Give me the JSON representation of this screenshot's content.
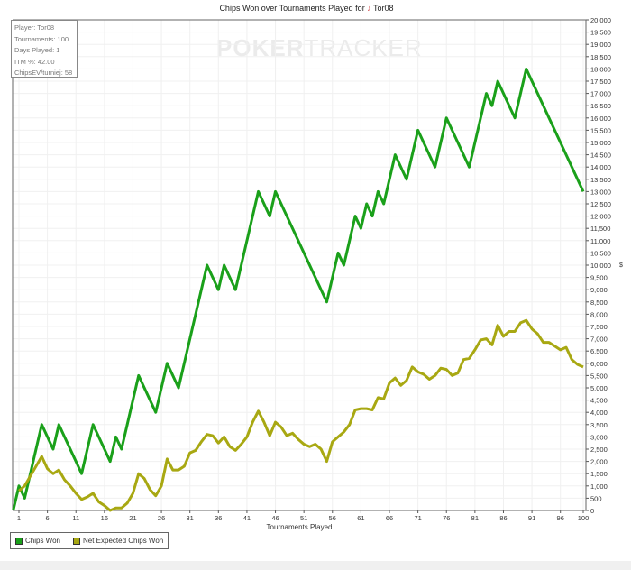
{
  "chart_data": {
    "type": "line",
    "title": "Chips Won over Tournaments Played for",
    "player_name": "Tor08",
    "xlabel": "Tournaments Played",
    "ylabel": "$",
    "xlim": [
      0,
      100
    ],
    "ylim": [
      0,
      20000
    ],
    "x_ticks": [
      1,
      6,
      11,
      16,
      21,
      26,
      31,
      36,
      41,
      46,
      51,
      56,
      61,
      66,
      71,
      76,
      81,
      86,
      91,
      96,
      100
    ],
    "y_tick_step": 500,
    "grid": true,
    "legend_position": "bottom-left",
    "series": [
      {
        "name": "Chips Won",
        "color": "#1aa01a",
        "points": [
          [
            0,
            0
          ],
          [
            1,
            1000
          ],
          [
            2,
            500
          ],
          [
            5,
            3500
          ],
          [
            7,
            2500
          ],
          [
            8,
            3500
          ],
          [
            12,
            1500
          ],
          [
            14,
            3500
          ],
          [
            17,
            2000
          ],
          [
            18,
            3000
          ],
          [
            19,
            2500
          ],
          [
            22,
            5500
          ],
          [
            25,
            4000
          ],
          [
            27,
            6000
          ],
          [
            29,
            5000
          ],
          [
            34,
            10000
          ],
          [
            36,
            9000
          ],
          [
            37,
            10000
          ],
          [
            39,
            9000
          ],
          [
            43,
            13000
          ],
          [
            45,
            12000
          ],
          [
            46,
            13000
          ],
          [
            55,
            8500
          ],
          [
            57,
            10500
          ],
          [
            58,
            10000
          ],
          [
            60,
            12000
          ],
          [
            61,
            11500
          ],
          [
            62,
            12500
          ],
          [
            63,
            12000
          ],
          [
            64,
            13000
          ],
          [
            65,
            12500
          ],
          [
            67,
            14500
          ],
          [
            69,
            13500
          ],
          [
            71,
            15500
          ],
          [
            74,
            14000
          ],
          [
            76,
            16000
          ],
          [
            80,
            14000
          ],
          [
            83,
            17000
          ],
          [
            84,
            16500
          ],
          [
            85,
            17500
          ],
          [
            88,
            16000
          ],
          [
            90,
            18000
          ],
          [
            100,
            13000
          ]
        ]
      },
      {
        "name": "Net Expected Chips Won",
        "color": "#a8a812",
        "values": [
          800,
          1000,
          1400,
          1800,
          2200,
          1700,
          1500,
          1650,
          1250,
          1000,
          700,
          450,
          550,
          700,
          350,
          200,
          0,
          100,
          100,
          300,
          700,
          1500,
          1300,
          850,
          600,
          1000,
          2100,
          1650,
          1650,
          1800,
          2350,
          2450,
          2800,
          3100,
          3050,
          2750,
          3000,
          2600,
          2450,
          2700,
          3000,
          3600,
          4050,
          3600,
          3050,
          3600,
          3400,
          3050,
          3150,
          2900,
          2700,
          2600,
          2700,
          2500,
          2000,
          2800,
          3000,
          3200,
          3500,
          4100,
          4150,
          4150,
          4100,
          4600,
          4550,
          5200,
          5400,
          5100,
          5300,
          5850,
          5650,
          5550,
          5350,
          5500,
          5800,
          5750,
          5500,
          5600,
          6150,
          6200,
          6550,
          6950,
          7000,
          6750,
          7550,
          7100,
          7300,
          7300,
          7650,
          7750,
          7400,
          7200,
          6850,
          6850,
          6700,
          6550,
          6650,
          6150,
          5950,
          5850
        ]
      }
    ]
  },
  "info_box": [
    "Player: Tor08",
    "Tournaments: 100",
    "Days Played: 1",
    "ITM %: 42.00",
    "ChipsEV/turniej: 58"
  ],
  "watermark": {
    "bold": "POKER",
    "light": "TRACKER"
  }
}
